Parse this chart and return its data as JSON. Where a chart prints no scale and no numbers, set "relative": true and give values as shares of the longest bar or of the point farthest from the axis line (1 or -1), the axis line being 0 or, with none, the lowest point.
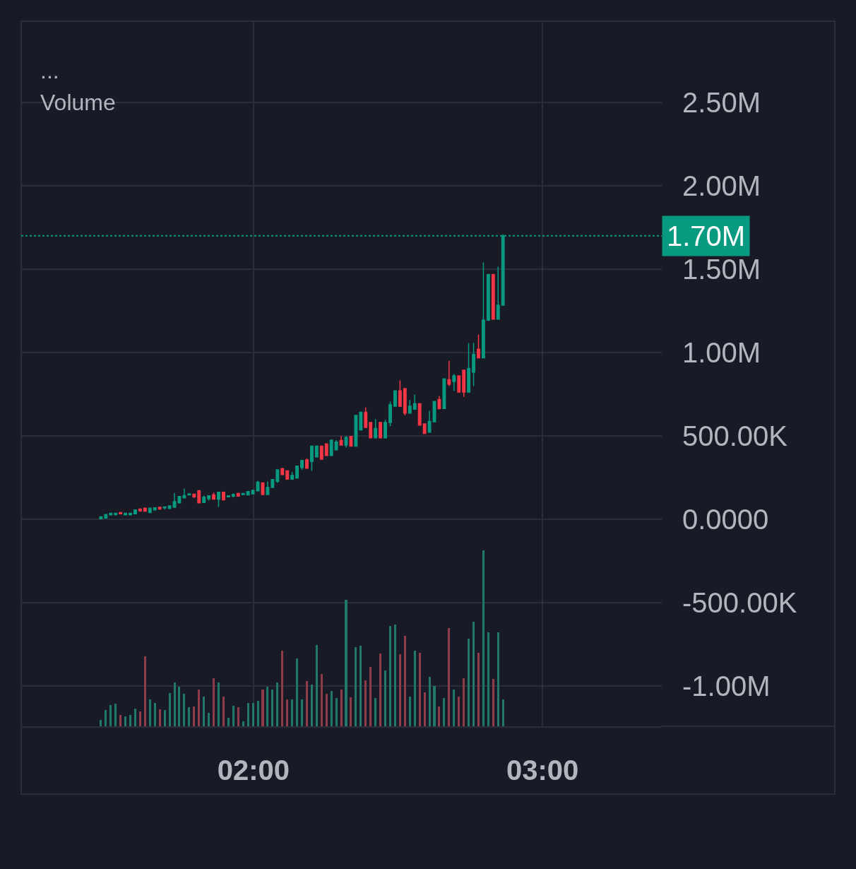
{
  "chart_data": [
    {
      "type": "candlestick",
      "title": "...",
      "x": [
        1.4719,
        1.4889,
        1.5058,
        1.5228,
        1.5398,
        1.5567,
        1.5737,
        1.5907,
        1.6077,
        1.6246,
        1.6416,
        1.6586,
        1.6755,
        1.6925,
        1.7095,
        1.7265,
        1.7434,
        1.7604,
        1.7774,
        1.7943,
        1.8113,
        1.8283,
        1.8453,
        1.8622,
        1.8792,
        1.8962,
        1.9131,
        1.9301,
        1.9471,
        1.9641,
        1.981,
        1.998,
        2.015,
        2.0319,
        2.0489,
        2.0659,
        2.0829,
        2.0998,
        2.1168,
        2.1338,
        2.1507,
        2.1677,
        2.1847,
        2.2017,
        2.2186,
        2.2356,
        2.2526,
        2.2695,
        2.2865,
        2.3035,
        2.3204,
        2.3374,
        2.3544,
        2.3714,
        2.3883,
        2.4053,
        2.4223,
        2.4392,
        2.4562,
        2.4732,
        2.4902,
        2.5071,
        2.5241,
        2.5411,
        2.558,
        2.575,
        2.592,
        2.609,
        2.6259,
        2.6429,
        2.6599,
        2.6768,
        2.6938,
        2.7108,
        2.7278,
        2.7447,
        2.7617,
        2.7787,
        2.7956,
        2.8126,
        2.8296,
        2.8466,
        2.8635
      ],
      "ohlc": [
        [
          3000,
          14000,
          2000,
          14000
        ],
        [
          7000,
          28000,
          7000,
          28000
        ],
        [
          26000,
          36000,
          26000,
          36000
        ],
        [
          28000,
          38000,
          22000,
          36000
        ],
        [
          40000,
          40000,
          32000,
          32000
        ],
        [
          26000,
          36000,
          26000,
          36000
        ],
        [
          26000,
          36000,
          26000,
          36000
        ],
        [
          32000,
          56000,
          32000,
          56000
        ],
        [
          60000,
          66000,
          44000,
          50000
        ],
        [
          66000,
          70000,
          48000,
          48000
        ],
        [
          40000,
          66000,
          40000,
          66000
        ],
        [
          56000,
          68000,
          56000,
          68000
        ],
        [
          72000,
          72000,
          56000,
          62000
        ],
        [
          68000,
          74000,
          58000,
          74000
        ],
        [
          64000,
          80000,
          64000,
          80000
        ],
        [
          72000,
          156000,
          72000,
          106000
        ],
        [
          98000,
          136000,
          98000,
          136000
        ],
        [
          128000,
          184000,
          128000,
          142000
        ],
        [
          146000,
          152000,
          146000,
          152000
        ],
        [
          150000,
          150000,
          128000,
          134000
        ],
        [
          170000,
          176000,
          98000,
          98000
        ],
        [
          100000,
          142000,
          100000,
          132000
        ],
        [
          124000,
          140000,
          112000,
          140000
        ],
        [
          146000,
          160000,
          120000,
          120000
        ],
        [
          120000,
          162000,
          74000,
          162000
        ],
        [
          162000,
          166000,
          112000,
          116000
        ],
        [
          134000,
          140000,
          134000,
          140000
        ],
        [
          138000,
          154000,
          130000,
          148000
        ],
        [
          154000,
          158000,
          138000,
          138000
        ],
        [
          148000,
          154000,
          148000,
          154000
        ],
        [
          146000,
          166000,
          146000,
          166000
        ],
        [
          152000,
          178000,
          152000,
          172000
        ],
        [
          170000,
          230000,
          170000,
          222000
        ],
        [
          218000,
          220000,
          148000,
          148000
        ],
        [
          148000,
          226000,
          148000,
          190000
        ],
        [
          190000,
          238000,
          190000,
          238000
        ],
        [
          226000,
          296000,
          218000,
          296000
        ],
        [
          304000,
          308000,
          268000,
          268000
        ],
        [
          290000,
          290000,
          240000,
          240000
        ],
        [
          240000,
          282000,
          240000,
          262000
        ],
        [
          248000,
          318000,
          248000,
          318000
        ],
        [
          310000,
          352000,
          296000,
          352000
        ],
        [
          356000,
          364000,
          306000,
          306000
        ],
        [
          346000,
          438000,
          290000,
          438000
        ],
        [
          374000,
          442000,
          374000,
          438000
        ],
        [
          438000,
          438000,
          360000,
          360000
        ],
        [
          452000,
          452000,
          382000,
          382000
        ],
        [
          382000,
          474000,
          382000,
          474000
        ],
        [
          416000,
          474000,
          416000,
          462000
        ],
        [
          472000,
          500000,
          444000,
          444000
        ],
        [
          444000,
          500000,
          430000,
          490000
        ],
        [
          496000,
          496000,
          438000,
          438000
        ],
        [
          438000,
          622000,
          438000,
          622000
        ],
        [
          536000,
          642000,
          536000,
          642000
        ],
        [
          642000,
          670000,
          550000,
          550000
        ],
        [
          580000,
          580000,
          488000,
          488000
        ],
        [
          488000,
          600000,
          488000,
          544000
        ],
        [
          580000,
          580000,
          488000,
          488000
        ],
        [
          488000,
          596000,
          488000,
          580000
        ],
        [
          580000,
          706000,
          558000,
          686000
        ],
        [
          678000,
          770000,
          678000,
          770000
        ],
        [
          770000,
          832000,
          678000,
          678000
        ],
        [
          784000,
          784000,
          622000,
          636000
        ],
        [
          636000,
          716000,
          636000,
          678000
        ],
        [
          660000,
          748000,
          660000,
          692000
        ],
        [
          692000,
          692000,
          564000,
          564000
        ],
        [
          572000,
          572000,
          514000,
          514000
        ],
        [
          522000,
          650000,
          522000,
          586000
        ],
        [
          584000,
          706000,
          584000,
          706000
        ],
        [
          718000,
          738000,
          658000,
          664000
        ],
        [
          664000,
          842000,
          664000,
          842000
        ],
        [
          836000,
          950000,
          798000,
          810000
        ],
        [
          826000,
          870000,
          770000,
          860000
        ],
        [
          860000,
          860000,
          762000,
          762000
        ],
        [
          894000,
          894000,
          734000,
          762000
        ],
        [
          762000,
          1056000,
          762000,
          904000
        ],
        [
          882000,
          1058000,
          798000,
          988000
        ],
        [
          1020000,
          1108000,
          968000,
          968000
        ],
        [
          968000,
          1540000,
          968000,
          1194000
        ],
        [
          1194000,
          1468000,
          1194000,
          1468000
        ],
        [
          1468000,
          1468000,
          1200000,
          1200000
        ],
        [
          1200000,
          1514000,
          1200000,
          1284000
        ],
        [
          1284000,
          1708000,
          1284000,
          1700000
        ]
      ],
      "xlim": [
        1.196,
        3.413
      ],
      "xticks": [
        {
          "value": 2,
          "label": "02:00"
        },
        {
          "value": 3,
          "label": "03:00"
        }
      ],
      "ylim": [
        -1242000,
        2987000
      ],
      "yticks": [
        {
          "value": 2500000,
          "label": "2.50M"
        },
        {
          "value": 2000000,
          "label": "2.00M"
        },
        {
          "value": 1500000,
          "label": "1.50M"
        },
        {
          "value": 1000000,
          "label": "1.00M"
        },
        {
          "value": 500000,
          "label": "500.00K"
        },
        {
          "value": 0,
          "label": "0.0000"
        },
        {
          "value": -500000,
          "label": "-500.00K"
        },
        {
          "value": -1000000,
          "label": "-1.00M"
        }
      ],
      "grid": true,
      "ref_lines": [
        {
          "axis": "y",
          "value": 1700000,
          "label": "1.70M",
          "color": "#089981",
          "line_style": "dotted"
        }
      ]
    },
    {
      "type": "bar",
      "title": "Volume",
      "relative": true,
      "x": [
        1.4719,
        1.4889,
        1.5058,
        1.5228,
        1.5398,
        1.5567,
        1.5737,
        1.5907,
        1.6077,
        1.6246,
        1.6416,
        1.6586,
        1.6755,
        1.6925,
        1.7095,
        1.7265,
        1.7434,
        1.7604,
        1.7774,
        1.7943,
        1.8113,
        1.8283,
        1.8453,
        1.8622,
        1.8792,
        1.8962,
        1.9131,
        1.9301,
        1.9471,
        1.9641,
        1.981,
        1.998,
        2.015,
        2.0319,
        2.0489,
        2.0659,
        2.0829,
        2.0998,
        2.1168,
        2.1338,
        2.1507,
        2.1677,
        2.1847,
        2.2017,
        2.2186,
        2.2356,
        2.2526,
        2.2695,
        2.2865,
        2.3035,
        2.3204,
        2.3374,
        2.3544,
        2.3714,
        2.3883,
        2.4053,
        2.4223,
        2.4392,
        2.4562,
        2.4732,
        2.4902,
        2.5071,
        2.5241,
        2.5411,
        2.558,
        2.575,
        2.592,
        2.609,
        2.6259,
        2.6429,
        2.6599,
        2.6768,
        2.6938,
        2.7108,
        2.7278,
        2.7447,
        2.7617,
        2.7787,
        2.7956,
        2.8126,
        2.8296,
        2.8466,
        2.8635
      ],
      "values": [
        0.036,
        0.091,
        0.119,
        0.13,
        0.063,
        0.058,
        0.066,
        0.1,
        0.083,
        0.395,
        0.151,
        0.134,
        0.095,
        0.091,
        0.19,
        0.25,
        0.224,
        0.183,
        0.107,
        0.111,
        0.21,
        0.167,
        0.076,
        0.272,
        0.25,
        0.17,
        0.05,
        0.118,
        0.107,
        0.027,
        0.131,
        0.134,
        0.143,
        0.21,
        0.224,
        0.21,
        0.25,
        0.428,
        0.151,
        0.154,
        0.384,
        0.154,
        0.257,
        0.237,
        0.459,
        0.297,
        0.183,
        0.199,
        0.162,
        0.21,
        0.719,
        0.163,
        0.448,
        0.455,
        0.261,
        0.337,
        0.162,
        0.412,
        0.315,
        0.569,
        0.576,
        0.408,
        0.515,
        0.167,
        0.427,
        0.418,
        0.191,
        0.281,
        0.228,
        0.114,
        0.159,
        0.558,
        0.21,
        0.167,
        0.272,
        0.499,
        0.592,
        0.418,
        1,
        0.535,
        0.268,
        0.535,
        0.154
      ],
      "colors": [
        "#22786a",
        "#22786a",
        "#22786a",
        "#22786a",
        "#8f3b4a",
        "#22786a",
        "#22786a",
        "#22786a",
        "#8f3b4a",
        "#8f3b4a",
        "#22786a",
        "#22786a",
        "#8f3b4a",
        "#22786a",
        "#22786a",
        "#22786a",
        "#22786a",
        "#22786a",
        "#22786a",
        "#8f3b4a",
        "#8f3b4a",
        "#22786a",
        "#22786a",
        "#8f3b4a",
        "#22786a",
        "#8f3b4a",
        "#22786a",
        "#22786a",
        "#8f3b4a",
        "#22786a",
        "#22786a",
        "#22786a",
        "#22786a",
        "#8f3b4a",
        "#22786a",
        "#22786a",
        "#22786a",
        "#8f3b4a",
        "#8f3b4a",
        "#22786a",
        "#22786a",
        "#22786a",
        "#8f3b4a",
        "#22786a",
        "#22786a",
        "#8f3b4a",
        "#8f3b4a",
        "#22786a",
        "#22786a",
        "#8f3b4a",
        "#22786a",
        "#8f3b4a",
        "#22786a",
        "#22786a",
        "#8f3b4a",
        "#8f3b4a",
        "#22786a",
        "#8f3b4a",
        "#22786a",
        "#22786a",
        "#22786a",
        "#8f3b4a",
        "#8f3b4a",
        "#22786a",
        "#22786a",
        "#8f3b4a",
        "#8f3b4a",
        "#22786a",
        "#22786a",
        "#8f3b4a",
        "#22786a",
        "#8f3b4a",
        "#22786a",
        "#8f3b4a",
        "#8f3b4a",
        "#22786a",
        "#22786a",
        "#8f3b4a",
        "#22786a",
        "#22786a",
        "#8f3b4a",
        "#22786a",
        "#22786a"
      ],
      "xlim": [
        1.196,
        3.413
      ]
    }
  ]
}
